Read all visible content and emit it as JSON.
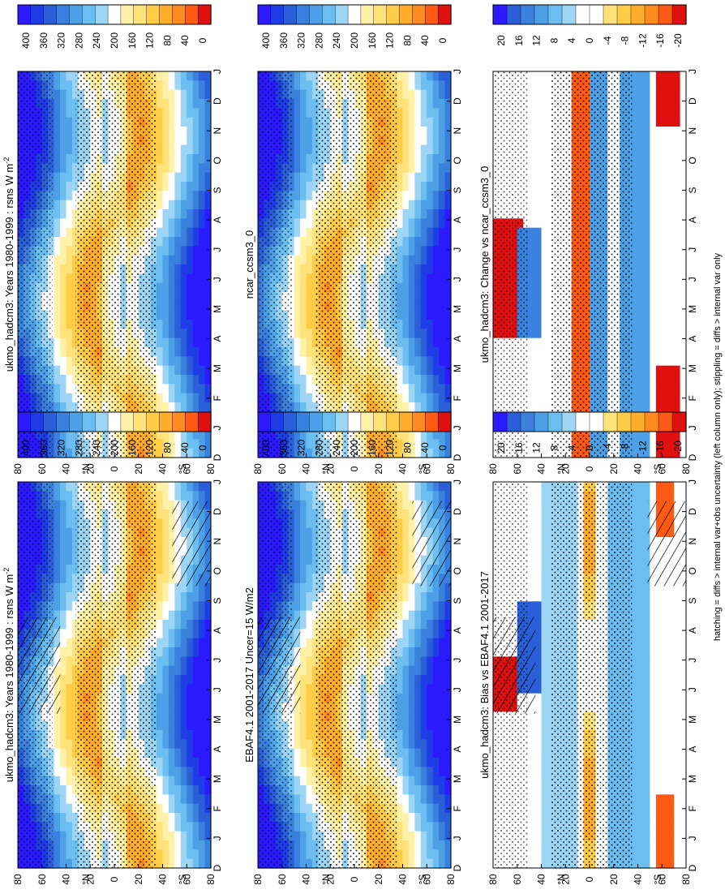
{
  "figure": {
    "caption": "hatching = diffs > internal var+obs uncertainty (left column only); stippling = diffs > internal var only",
    "orientation": "rotated 90 degrees clockwise",
    "colors": {
      "mean_scale": [
        "#2b1aff",
        "#1f3de6",
        "#2a5fd8",
        "#3a80dd",
        "#4ea0e6",
        "#6cbdf0",
        "#9dd6f5",
        "#ffffff",
        "#fff2a8",
        "#ffe27a",
        "#ffcc48",
        "#ffad2a",
        "#ff8a1f",
        "#ff5a14",
        "#e01010"
      ],
      "diff_scale": [
        "#2b1aff",
        "#2a5fd8",
        "#3a80dd",
        "#4ea0e6",
        "#6cbdf0",
        "#9dd6f5",
        "#ffffff",
        "#ffffff",
        "#ffe27a",
        "#ffcc48",
        "#ffad2a",
        "#ff8a1f",
        "#ff5a14",
        "#e01010"
      ]
    }
  },
  "chart_data": [
    {
      "id": "left-top",
      "type": "heatmap",
      "title": "ukmo_hadcm3: Years 1980-1999 : rsns W m",
      "title_superscript": "-2",
      "x": [
        "D",
        "J",
        "F",
        "M",
        "A",
        "M",
        "J",
        "J",
        "A",
        "S",
        "O",
        "N",
        "D",
        "J"
      ],
      "y_ticks": [
        "80",
        "60",
        "40",
        "20",
        "0",
        "20",
        "40",
        "60",
        "80"
      ],
      "y_unit_n": "°N",
      "y_unit_s": "°S",
      "colorbar_ticks": [
        "400",
        "360",
        "320",
        "280",
        "240",
        "200",
        "160",
        "120",
        "80",
        "40",
        "0"
      ],
      "zlim": [
        0,
        400
      ],
      "hatching": true,
      "stippling": true
    },
    {
      "id": "left-mid",
      "type": "heatmap",
      "title": "EBAF4.1 2001-2017 Uncer=15 W/m2",
      "x": [
        "D",
        "J",
        "F",
        "M",
        "A",
        "M",
        "J",
        "J",
        "A",
        "S",
        "O",
        "N",
        "D",
        "J"
      ],
      "y_ticks": [
        "80",
        "60",
        "40",
        "20",
        "0",
        "20",
        "40",
        "60",
        "80"
      ],
      "y_unit_n": "°N",
      "y_unit_s": "°S",
      "colorbar_ticks": [
        "400",
        "360",
        "320",
        "280",
        "240",
        "200",
        "160",
        "120",
        "80",
        "40",
        "0"
      ],
      "zlim": [
        0,
        400
      ],
      "hatching": true,
      "stippling": true
    },
    {
      "id": "left-bot",
      "type": "heatmap",
      "title": "ukmo_hadcm3: Bias vs EBAF4.1 2001-2017",
      "x": [
        "D",
        "J",
        "F",
        "M",
        "A",
        "M",
        "J",
        "J",
        "A",
        "S",
        "O",
        "N",
        "D",
        "J"
      ],
      "y_ticks": [
        "80",
        "60",
        "40",
        "20",
        "0",
        "20",
        "40",
        "60",
        "80"
      ],
      "y_unit_n": "°N",
      "y_unit_s": "°S",
      "colorbar_ticks": [
        "20",
        "16",
        "12",
        "8",
        "4",
        "0",
        "-4",
        "-8",
        "-12",
        "-16",
        "-20"
      ],
      "zlim": [
        -20,
        20
      ],
      "hatching": true,
      "stippling": true
    },
    {
      "id": "right-top",
      "type": "heatmap",
      "title": "ukmo_hadcm3: Years 1980-1999 : rsns W m",
      "title_superscript": "-2",
      "x": [
        "D",
        "J",
        "F",
        "M",
        "A",
        "M",
        "J",
        "J",
        "A",
        "S",
        "O",
        "N",
        "D",
        "J"
      ],
      "y_ticks": [
        "80",
        "60",
        "40",
        "20",
        "0",
        "20",
        "40",
        "60",
        "80"
      ],
      "y_unit_n": "°N",
      "y_unit_s": "°S",
      "colorbar_ticks": [
        "400",
        "360",
        "320",
        "280",
        "240",
        "200",
        "160",
        "120",
        "80",
        "40",
        "0"
      ],
      "zlim": [
        0,
        400
      ],
      "hatching": false,
      "stippling": true
    },
    {
      "id": "right-mid",
      "type": "heatmap",
      "title": "ncar_ccsm3_0",
      "x": [
        "D",
        "J",
        "F",
        "M",
        "A",
        "M",
        "J",
        "J",
        "A",
        "S",
        "O",
        "N",
        "D",
        "J"
      ],
      "y_ticks": [
        "80",
        "60",
        "40",
        "20",
        "0",
        "20",
        "40",
        "60",
        "80"
      ],
      "y_unit_n": "°N",
      "y_unit_s": "°S",
      "colorbar_ticks": [
        "400",
        "360",
        "320",
        "280",
        "240",
        "200",
        "160",
        "120",
        "80",
        "40",
        "0"
      ],
      "zlim": [
        0,
        400
      ],
      "hatching": false,
      "stippling": true
    },
    {
      "id": "right-bot",
      "type": "heatmap",
      "title": "ukmo_hadcm3: Change vs ncar_ccsm3_0",
      "x": [
        "D",
        "J",
        "F",
        "M",
        "A",
        "M",
        "J",
        "J",
        "A",
        "S",
        "O",
        "N",
        "D",
        "J"
      ],
      "y_ticks": [
        "80",
        "60",
        "40",
        "20",
        "0",
        "20",
        "40",
        "60",
        "80"
      ],
      "y_unit_n": "°N",
      "y_unit_s": "°S",
      "colorbar_ticks": [
        "20",
        "16",
        "12",
        "8",
        "4",
        "0",
        "-4",
        "-8",
        "-12",
        "-16",
        "-20"
      ],
      "zlim": [
        -20,
        20
      ],
      "hatching": false,
      "stippling": true
    }
  ]
}
